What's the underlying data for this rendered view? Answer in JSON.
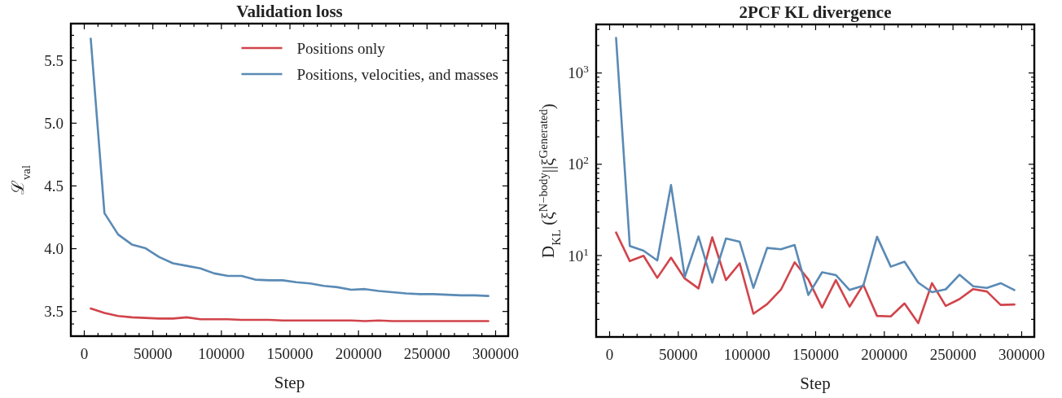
{
  "chart_data": [
    {
      "type": "line",
      "title": "Validation loss",
      "xlabel": "Step",
      "ylabel": "ℒ$_{val}$",
      "legend": "top right",
      "grid": false,
      "line_style": "solid",
      "marker": "none",
      "x": [
        5000,
        15000,
        25000,
        35000,
        45000,
        55000,
        65000,
        75000,
        85000,
        95000,
        105000,
        115000,
        125000,
        135000,
        145000,
        155000,
        165000,
        175000,
        185000,
        195000,
        205000,
        215000,
        225000,
        235000,
        245000,
        255000,
        265000,
        275000,
        285000,
        295000
      ],
      "xlim": [
        -9500,
        309500
      ],
      "xticks": [
        0,
        {
          "value": 10000,
          "label": null
        },
        {
          "value": 20000,
          "label": null
        },
        {
          "value": 30000,
          "label": null
        },
        {
          "value": 40000,
          "label": null
        },
        50000,
        {
          "value": 60000,
          "label": null
        },
        {
          "value": 70000,
          "label": null
        },
        {
          "value": 80000,
          "label": null
        },
        {
          "value": 90000,
          "label": null
        },
        100000,
        {
          "value": 110000,
          "label": null
        },
        {
          "value": 120000,
          "label": null
        },
        {
          "value": 130000,
          "label": null
        },
        {
          "value": 140000,
          "label": null
        },
        150000,
        {
          "value": 160000,
          "label": null
        },
        {
          "value": 170000,
          "label": null
        },
        {
          "value": 180000,
          "label": null
        },
        {
          "value": 190000,
          "label": null
        },
        200000,
        {
          "value": 210000,
          "label": null
        },
        {
          "value": 220000,
          "label": null
        },
        {
          "value": 230000,
          "label": null
        },
        {
          "value": 240000,
          "label": null
        },
        250000,
        {
          "value": 260000,
          "label": null
        },
        {
          "value": 270000,
          "label": null
        },
        {
          "value": 280000,
          "label": null
        },
        {
          "value": 290000,
          "label": null
        },
        300000
      ],
      "ylim": [
        3.3,
        5.79
      ],
      "yticks": [
        {
          "value": 3.4,
          "label": null
        },
        3.5,
        {
          "value": 3.6,
          "label": null
        },
        {
          "value": 3.7,
          "label": null
        },
        {
          "value": 3.8,
          "label": null
        },
        {
          "value": 3.9,
          "label": null
        },
        {
          "value": 4.0,
          "label": "4.0"
        },
        {
          "value": 4.1,
          "label": null
        },
        {
          "value": 4.2,
          "label": null
        },
        {
          "value": 4.3,
          "label": null
        },
        {
          "value": 4.4,
          "label": null
        },
        4.5,
        {
          "value": 4.6,
          "label": null
        },
        {
          "value": 4.7,
          "label": null
        },
        {
          "value": 4.8,
          "label": null
        },
        {
          "value": 4.9,
          "label": null
        },
        {
          "value": 5.0,
          "label": "5.0"
        },
        {
          "value": 5.1,
          "label": null
        },
        {
          "value": 5.2,
          "label": null
        },
        {
          "value": 5.3,
          "label": null
        },
        {
          "value": 5.4,
          "label": null
        },
        5.5,
        {
          "value": 5.6,
          "label": null
        },
        {
          "value": 5.7,
          "label": null
        }
      ],
      "series": [
        {
          "name": "Positions only",
          "color": "#d1444b",
          "values": [
            3.52,
            3.485,
            3.46,
            3.45,
            3.445,
            3.44,
            3.44,
            3.45,
            3.435,
            3.435,
            3.435,
            3.43,
            3.43,
            3.43,
            3.425,
            3.425,
            3.425,
            3.425,
            3.425,
            3.425,
            3.42,
            3.425,
            3.42,
            3.42,
            3.42,
            3.42,
            3.42,
            3.42,
            3.42,
            3.42
          ]
        },
        {
          "name": "Positions, velocities, and masses",
          "color": "#5a8ab5",
          "values": [
            5.67,
            4.28,
            4.11,
            4.03,
            4.0,
            3.93,
            3.88,
            3.86,
            3.84,
            3.8,
            3.78,
            3.78,
            3.75,
            3.745,
            3.745,
            3.73,
            3.72,
            3.7,
            3.69,
            3.67,
            3.675,
            3.66,
            3.65,
            3.64,
            3.635,
            3.635,
            3.63,
            3.625,
            3.625,
            3.62
          ]
        }
      ]
    },
    {
      "type": "line",
      "title": "2PCF KL divergence",
      "xlabel": "Step",
      "ylabel": "D$_{KL}$ (ξ$^{N−body}$||ξ$^{Generated}$)",
      "legend": false,
      "grid": false,
      "log": "y",
      "line_style": "solid",
      "marker": "none",
      "x": [
        5000,
        15000,
        25000,
        35000,
        45000,
        55000,
        65000,
        75000,
        85000,
        95000,
        105000,
        115000,
        125000,
        135000,
        145000,
        155000,
        165000,
        175000,
        185000,
        195000,
        205000,
        215000,
        225000,
        235000,
        245000,
        255000,
        265000,
        275000,
        285000,
        295000
      ],
      "xlim": [
        -9500,
        309500
      ],
      "xticks": [
        0,
        {
          "value": 10000,
          "label": null
        },
        {
          "value": 20000,
          "label": null
        },
        {
          "value": 30000,
          "label": null
        },
        {
          "value": 40000,
          "label": null
        },
        50000,
        {
          "value": 60000,
          "label": null
        },
        {
          "value": 70000,
          "label": null
        },
        {
          "value": 80000,
          "label": null
        },
        {
          "value": 90000,
          "label": null
        },
        100000,
        {
          "value": 110000,
          "label": null
        },
        {
          "value": 120000,
          "label": null
        },
        {
          "value": 130000,
          "label": null
        },
        {
          "value": 140000,
          "label": null
        },
        150000,
        {
          "value": 160000,
          "label": null
        },
        {
          "value": 170000,
          "label": null
        },
        {
          "value": 180000,
          "label": null
        },
        {
          "value": 190000,
          "label": null
        },
        200000,
        {
          "value": 210000,
          "label": null
        },
        {
          "value": 220000,
          "label": null
        },
        {
          "value": 230000,
          "label": null
        },
        {
          "value": 240000,
          "label": null
        },
        250000,
        {
          "value": 260000,
          "label": null
        },
        {
          "value": 270000,
          "label": null
        },
        {
          "value": 280000,
          "label": null
        },
        {
          "value": 290000,
          "label": null
        },
        300000
      ],
      "ylim": [
        1.27,
        3370
      ],
      "yticks": [
        {
          "value": 2,
          "label": null
        },
        {
          "value": 3,
          "label": null
        },
        {
          "value": 4,
          "label": null
        },
        {
          "value": 5,
          "label": null
        },
        {
          "value": 6,
          "label": null
        },
        {
          "value": 7,
          "label": null
        },
        {
          "value": 8,
          "label": null
        },
        {
          "value": 9,
          "label": null
        },
        {
          "value": 10,
          "label": "10$^{1}$"
        },
        {
          "value": 20,
          "label": null
        },
        {
          "value": 30,
          "label": null
        },
        {
          "value": 40,
          "label": null
        },
        {
          "value": 50,
          "label": null
        },
        {
          "value": 60,
          "label": null
        },
        {
          "value": 70,
          "label": null
        },
        {
          "value": 80,
          "label": null
        },
        {
          "value": 90,
          "label": null
        },
        {
          "value": 100,
          "label": "10$^{2}$"
        },
        {
          "value": 200,
          "label": null
        },
        {
          "value": 300,
          "label": null
        },
        {
          "value": 400,
          "label": null
        },
        {
          "value": 500,
          "label": null
        },
        {
          "value": 600,
          "label": null
        },
        {
          "value": 700,
          "label": null
        },
        {
          "value": 800,
          "label": null
        },
        {
          "value": 900,
          "label": null
        },
        {
          "value": 1000,
          "label": "10$^{3}$"
        },
        {
          "value": 2000,
          "label": null
        },
        {
          "value": 3000,
          "label": null
        }
      ],
      "series": [
        {
          "color": "#d1444b",
          "values": [
            17.7,
            8.6,
            9.85,
            5.64,
            9.4,
            5.55,
            4.32,
            15.7,
            5.33,
            8.15,
            2.28,
            2.91,
            4.18,
            8.35,
            5.42,
            2.67,
            5.33,
            2.73,
            4.74,
            2.16,
            2.13,
            2.96,
            1.8,
            4.93,
            2.78,
            3.3,
            4.25,
            4.0,
            2.85,
            2.88
          ]
        },
        {
          "color": "#5a8ab5",
          "values": [
            2400,
            12.6,
            11.2,
            8.75,
            58.6,
            5.77,
            16.0,
            5.0,
            15.2,
            14.0,
            4.38,
            12.0,
            11.6,
            12.9,
            3.66,
            6.49,
            6.05,
            4.15,
            4.63,
            15.9,
            7.48,
            8.48,
            5.0,
            3.93,
            4.22,
            6.1,
            4.56,
            4.38,
            4.93,
            4.15
          ]
        }
      ]
    }
  ]
}
